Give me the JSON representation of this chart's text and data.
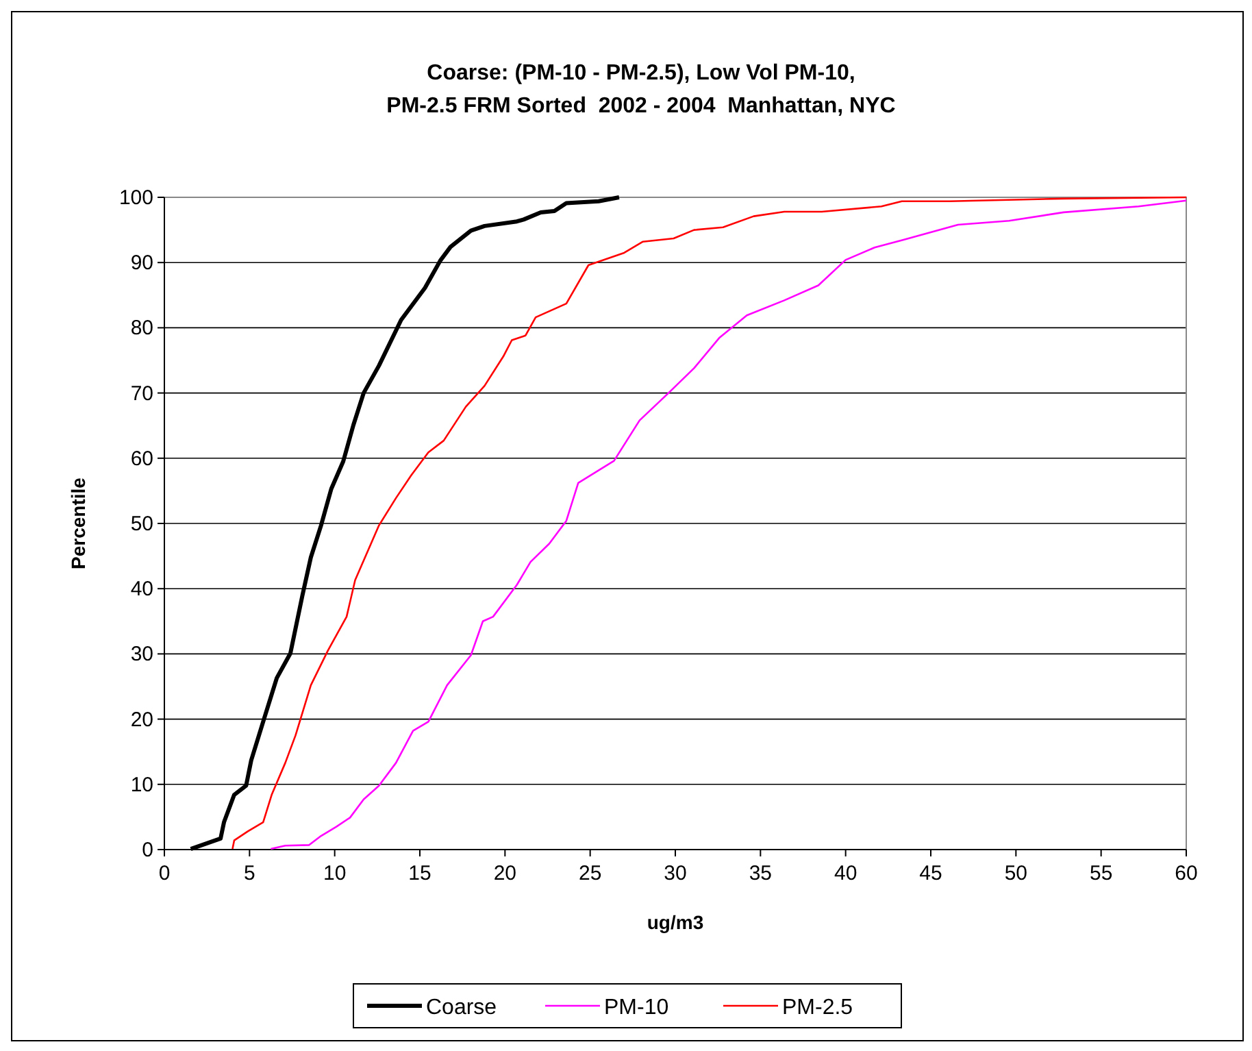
{
  "chart_data": {
    "type": "line",
    "title": "Coarse: (PM-10 - PM-2.5), Low Vol PM-10,\nPM-2.5 FRM Sorted  2002 - 2004  Manhattan, NYC",
    "xlabel": "ug/m3",
    "ylabel": "Percentile",
    "xlim": [
      0,
      60
    ],
    "ylim": [
      0,
      100
    ],
    "xticks": [
      0,
      5,
      10,
      15,
      20,
      25,
      30,
      35,
      40,
      45,
      50,
      55,
      60
    ],
    "yticks": [
      0,
      10,
      20,
      30,
      40,
      50,
      60,
      70,
      80,
      90,
      100
    ],
    "grid": "y",
    "legend": "bottom",
    "line_style": "solid",
    "series": [
      {
        "name": "Coarse",
        "color": "#000000",
        "x": [
          1.55,
          3.3,
          3.5,
          4.1,
          4.8,
          5.1,
          5.8,
          6.6,
          7.4,
          8.1,
          8.6,
          9.2,
          9.8,
          10.5,
          11.1,
          11.7,
          12.6,
          13.9,
          15.3,
          16.2,
          16.8,
          18.0,
          18.8,
          20.7,
          21.1,
          22.1,
          22.9,
          23.6,
          25.5,
          26.7
        ],
        "values": [
          0.1,
          1.7,
          4.2,
          8.4,
          9.8,
          13.7,
          19.6,
          26.3,
          30.1,
          38.9,
          44.8,
          49.7,
          55.3,
          59.5,
          65.1,
          70.0,
          74.2,
          81.2,
          86.1,
          90.3,
          92.4,
          94.9,
          95.6,
          96.3,
          96.6,
          97.7,
          97.9,
          99.1,
          99.4,
          100
        ]
      },
      {
        "name": "PM-10",
        "color": "#ff00ff",
        "x": [
          6.25,
          7.1,
          8.5,
          9.2,
          10.1,
          10.9,
          11.7,
          12.6,
          13.6,
          14.6,
          15.5,
          16.6,
          18.0,
          18.7,
          19.3,
          20.7,
          21.5,
          22.6,
          23.6,
          24.3,
          26.4,
          27.9,
          29.6,
          31.1,
          32.6,
          34.2,
          36.4,
          38.4,
          40.0,
          41.7,
          43.4,
          46.6,
          49.6,
          52.8,
          57.2,
          60
        ],
        "values": [
          0.1,
          0.6,
          0.7,
          2.1,
          3.5,
          4.9,
          7.7,
          9.8,
          13.3,
          18.2,
          19.6,
          25.2,
          29.8,
          35.0,
          35.7,
          40.6,
          44.1,
          46.9,
          50.4,
          56.2,
          59.6,
          65.8,
          70,
          73.8,
          78.5,
          81.9,
          84.2,
          86.5,
          90.4,
          92.3,
          93.5,
          95.8,
          96.4,
          97.7,
          98.6,
          99.5
        ]
      },
      {
        "name": "PM-2.5",
        "color": "#ff0000",
        "x": [
          4.0,
          4.1,
          4.9,
          5.8,
          6.3,
          7.1,
          7.7,
          8.6,
          9.6,
          10.7,
          11.2,
          11.9,
          12.6,
          13.6,
          14.5,
          15.5,
          16.4,
          17.7,
          18.8,
          19.9,
          20.4,
          21.2,
          21.8,
          23.6,
          24.9,
          27.0,
          28.1,
          29.9,
          31.1,
          32.8,
          34.6,
          36.4,
          38.6,
          42.1,
          43.3,
          46.1,
          52.8,
          60
        ],
        "values": [
          0.1,
          1.4,
          2.8,
          4.2,
          8.4,
          13.3,
          17.5,
          25.2,
          30.5,
          35.7,
          41.3,
          45.5,
          49.7,
          53.9,
          57.4,
          60.9,
          62.7,
          67.9,
          71.1,
          75.6,
          78.1,
          78.8,
          81.6,
          83.7,
          89.6,
          91.5,
          93.2,
          93.7,
          95,
          95.4,
          97.1,
          97.8,
          97.8,
          98.6,
          99.4,
          99.4,
          99.8,
          100
        ]
      }
    ]
  }
}
